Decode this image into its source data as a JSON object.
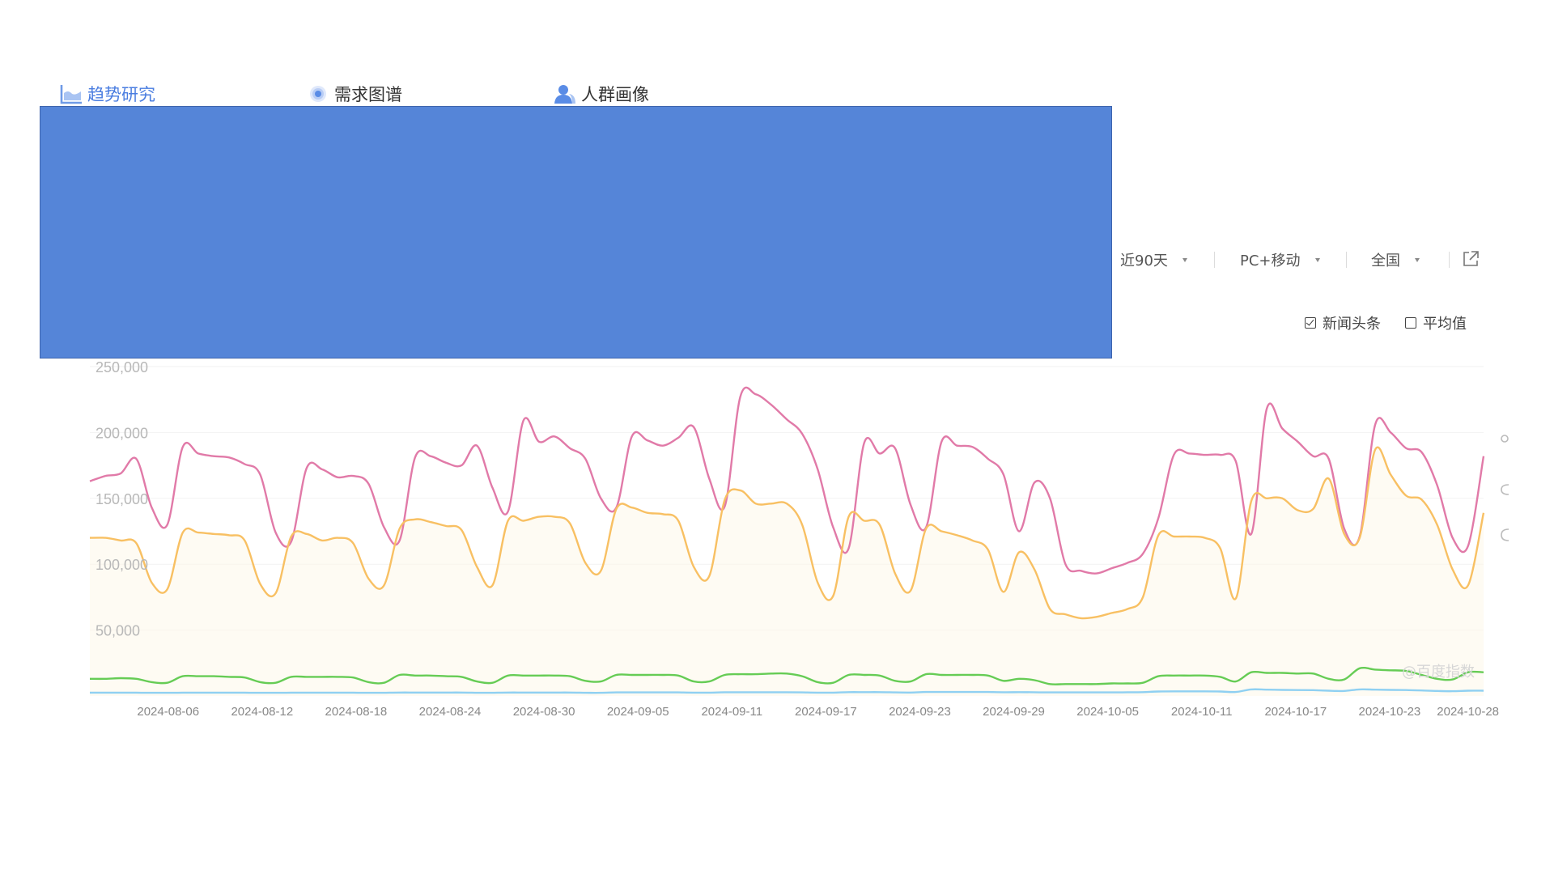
{
  "tabs": [
    {
      "label": "趋势研究",
      "active": true,
      "icon": "trend-chart-icon"
    },
    {
      "label": "需求图谱",
      "active": false,
      "icon": "demand-graph-icon"
    },
    {
      "label": "人群画像",
      "active": false,
      "icon": "user-profile-icon"
    }
  ],
  "filters": {
    "period": "近90天",
    "device": "PC+移动",
    "region": "全国"
  },
  "legend": {
    "news_label": "新闻头条",
    "news_checked": true,
    "avg_label": "平均值",
    "avg_checked": false
  },
  "watermark": "@百度指数",
  "colors": {
    "accent": "#4a7de0",
    "overlay": "#5585d8",
    "series_pink": "#e17aa8",
    "series_orange": "#f8c063",
    "series_green": "#66cc55",
    "series_blue": "#8fd0f2"
  },
  "chart_data": {
    "type": "line",
    "ylim": [
      0,
      250000
    ],
    "yticks": [
      "250,000",
      "200,000",
      "150,000",
      "100,000",
      "50,000"
    ],
    "ytick_values": [
      250000,
      200000,
      150000,
      100000,
      50000
    ],
    "grid": true,
    "x_start": "2024-08-01",
    "x_end": "2024-10-29",
    "xticks": [
      "2024-08-06",
      "2024-08-12",
      "2024-08-18",
      "2024-08-24",
      "2024-08-30",
      "2024-09-05",
      "2024-09-11",
      "2024-09-17",
      "2024-09-23",
      "2024-09-29",
      "2024-10-05",
      "2024-10-11",
      "2024-10-17",
      "2024-10-23",
      "2024-10-28"
    ],
    "series": [
      {
        "color": "#e17aa8",
        "values": [
          163000,
          167000,
          169000,
          180000,
          143000,
          130000,
          189000,
          184000,
          182000,
          181000,
          176000,
          168000,
          124000,
          117000,
          173000,
          172000,
          166000,
          167000,
          161000,
          128000,
          118000,
          181000,
          182000,
          177000,
          175000,
          190000,
          158000,
          140000,
          209000,
          193000,
          197000,
          188000,
          180000,
          150000,
          143000,
          197000,
          194000,
          190000,
          196000,
          204000,
          165000,
          144000,
          227000,
          229000,
          221000,
          210000,
          199000,
          172000,
          128000,
          112000,
          192000,
          184000,
          188000,
          145000,
          128000,
          193000,
          190000,
          189000,
          180000,
          168000,
          125000,
          162000,
          150000,
          100000,
          95000,
          93000,
          97000,
          101000,
          108000,
          135000,
          183000,
          184000,
          183000,
          183000,
          178000,
          123000,
          218000,
          203000,
          193000,
          182000,
          180000,
          127000,
          121000,
          206000,
          200000,
          188000,
          185000,
          160000,
          120000,
          114000,
          182000
        ]
      },
      {
        "color": "#f8c063",
        "values": [
          120000,
          120000,
          118000,
          116000,
          86000,
          81000,
          124000,
          124000,
          123000,
          122000,
          118000,
          85000,
          78000,
          121000,
          123000,
          118000,
          120000,
          116000,
          89000,
          84000,
          127000,
          134000,
          132000,
          129000,
          126000,
          98000,
          84000,
          133000,
          133000,
          136000,
          136000,
          131000,
          101000,
          95000,
          142000,
          143000,
          139000,
          138000,
          133000,
          98000,
          91000,
          149000,
          156000,
          146000,
          146000,
          146000,
          130000,
          86000,
          76000,
          136000,
          133000,
          130000,
          93000,
          80000,
          127000,
          125000,
          122000,
          118000,
          111000,
          79000,
          109000,
          96000,
          66000,
          62000,
          59000,
          60000,
          63000,
          66000,
          75000,
          122000,
          121000,
          121000,
          120000,
          112000,
          74000,
          148000,
          150000,
          150000,
          141000,
          142000,
          165000,
          123000,
          120000,
          187000,
          168000,
          152000,
          149000,
          130000,
          96000,
          84000,
          139000
        ]
      },
      {
        "color": "#66cc55",
        "values": [
          13000,
          13000,
          13500,
          13000,
          10500,
          10000,
          15000,
          15000,
          15000,
          14500,
          14000,
          10500,
          10000,
          14500,
          14500,
          14500,
          14500,
          14000,
          10500,
          10000,
          16000,
          15500,
          15500,
          15000,
          14500,
          11000,
          10000,
          15500,
          15500,
          15500,
          15500,
          15000,
          11500,
          11000,
          16000,
          16000,
          16000,
          16000,
          15500,
          11000,
          11000,
          16000,
          16500,
          16500,
          17000,
          17000,
          15000,
          10500,
          10000,
          16000,
          16000,
          15500,
          11500,
          11000,
          16500,
          16000,
          16000,
          16000,
          15500,
          11500,
          13000,
          12000,
          9000,
          9000,
          9000,
          9000,
          9500,
          9500,
          10000,
          15000,
          15500,
          15500,
          15500,
          14500,
          11000,
          18000,
          17500,
          17500,
          17000,
          17000,
          13000,
          12500,
          21000,
          20000,
          19500,
          19000,
          16000,
          13000,
          12500,
          18000,
          18000
        ]
      },
      {
        "color": "#8fd0f2",
        "values": [
          2500,
          2500,
          2500,
          2500,
          2400,
          2400,
          2500,
          2500,
          2500,
          2500,
          2500,
          2400,
          2400,
          2500,
          2500,
          2500,
          2500,
          2500,
          2400,
          2400,
          2600,
          2600,
          2600,
          2600,
          2600,
          2400,
          2400,
          2600,
          2600,
          2600,
          2600,
          2600,
          2400,
          2400,
          2700,
          2700,
          2700,
          2700,
          2700,
          2500,
          2500,
          2800,
          2800,
          2800,
          2800,
          2800,
          2700,
          2500,
          2500,
          2900,
          2900,
          2900,
          2700,
          2600,
          3000,
          3000,
          3000,
          3000,
          3000,
          2800,
          2900,
          2800,
          2700,
          2700,
          2700,
          2700,
          2700,
          2800,
          2900,
          3400,
          3500,
          3500,
          3500,
          3400,
          3000,
          5000,
          4800,
          4600,
          4500,
          4400,
          4000,
          3800,
          5000,
          4800,
          4600,
          4500,
          4200,
          3800,
          3600,
          4000,
          4000
        ]
      }
    ]
  }
}
